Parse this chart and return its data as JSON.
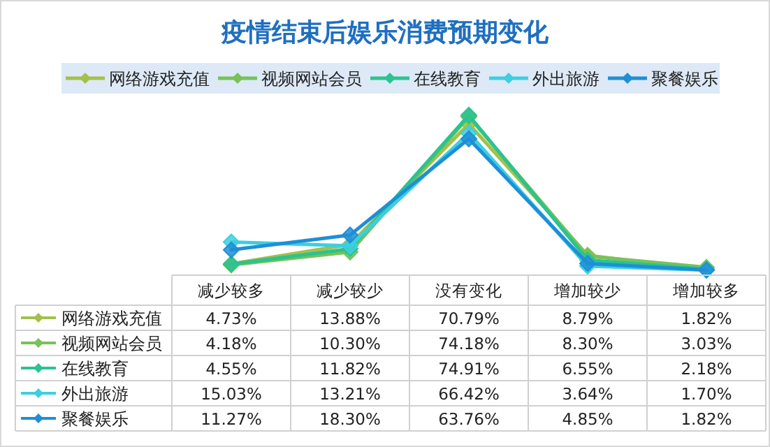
{
  "chart_data": {
    "type": "line",
    "title": "疫情结束后娱乐消费预期变化",
    "categories": [
      "减少较多",
      "减少较少",
      "没有变化",
      "增加较少",
      "增加较多"
    ],
    "series": [
      {
        "name": "网络游戏充值",
        "color": "#a3c14a",
        "values": [
          4.73,
          13.88,
          70.79,
          8.79,
          1.82
        ],
        "value_labels": [
          "4.73%",
          "13.88%",
          "70.79%",
          "8.79%",
          "1.82%"
        ]
      },
      {
        "name": "视频网站会员",
        "color": "#78c259",
        "values": [
          4.18,
          10.3,
          74.18,
          8.3,
          3.03
        ],
        "value_labels": [
          "4.18%",
          "10.30%",
          "74.18%",
          "8.30%",
          "3.03%"
        ]
      },
      {
        "name": "在线教育",
        "color": "#2bc38f",
        "values": [
          4.55,
          11.82,
          74.91,
          6.55,
          2.18
        ],
        "value_labels": [
          "4.55%",
          "11.82%",
          "74.91%",
          "6.55%",
          "2.18%"
        ]
      },
      {
        "name": "外出旅游",
        "color": "#3ccfe0",
        "values": [
          15.03,
          13.21,
          66.42,
          3.64,
          1.7
        ],
        "value_labels": [
          "15.03%",
          "13.21%",
          "66.42%",
          "3.64%",
          "1.70%"
        ]
      },
      {
        "name": "聚餐娱乐",
        "color": "#1e8fd6",
        "values": [
          11.27,
          18.3,
          63.76,
          4.85,
          1.82
        ],
        "value_labels": [
          "11.27%",
          "18.30%",
          "63.76%",
          "4.85%",
          "1.82%"
        ]
      }
    ],
    "marker": "diamond",
    "legend": "top",
    "grid": false
  }
}
